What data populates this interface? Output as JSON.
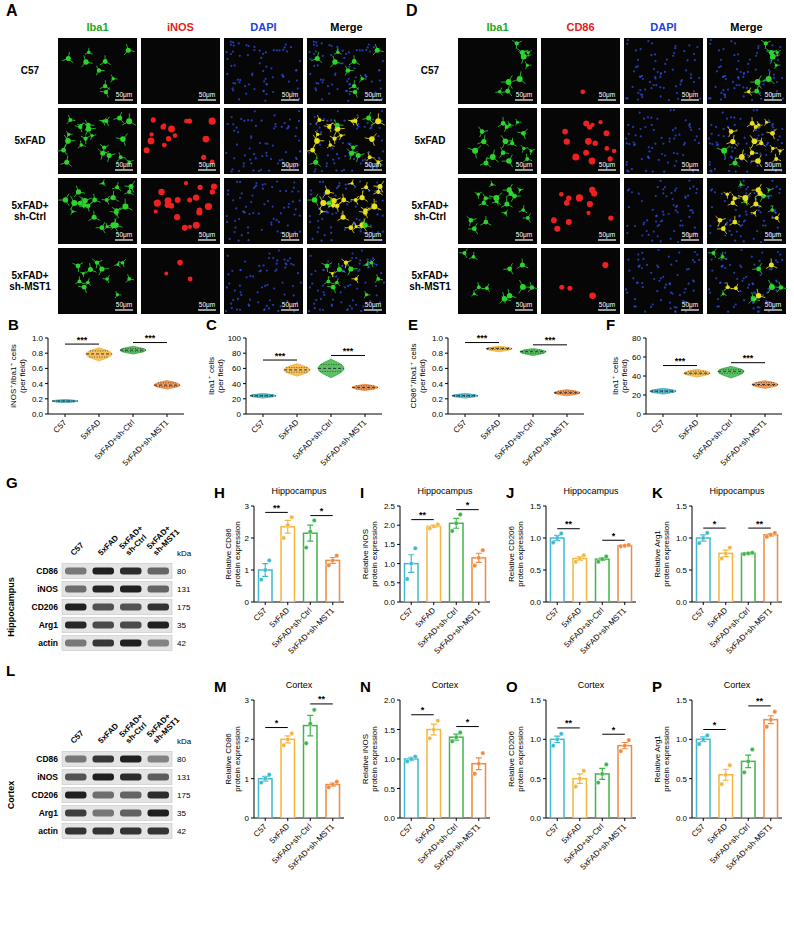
{
  "image_panels": [
    {
      "panel_label": "A",
      "columns": [
        "Iba1",
        "iNOS",
        "DAPI",
        "Merge"
      ],
      "rows": [
        "C57",
        "5xFAD",
        "5xFAD+sh-Ctrl",
        "5xFAD+sh-MST1"
      ],
      "scale_bar": "50μm"
    },
    {
      "panel_label": "D",
      "columns": [
        "Iba1",
        "CD86",
        "DAPI",
        "Merge"
      ],
      "rows": [
        "C57",
        "5xFAD",
        "5xFAD+sh-Ctrl",
        "5xFAD+sh-MST1"
      ],
      "scale_bar": "50μm"
    }
  ],
  "blots": [
    {
      "panel_label": "G",
      "region": "Hippocampus",
      "unit": "kDa",
      "lanes": [
        "C57",
        "5xFAD",
        "5xFAD+sh-Ctrl",
        "5xFAD+sh-MST1"
      ],
      "proteins": [
        {
          "name": "CD86",
          "kda": 80
        },
        {
          "name": "iNOS",
          "kda": 131
        },
        {
          "name": "CD206",
          "kda": 175
        },
        {
          "name": "Arg1",
          "kda": 35
        },
        {
          "name": "actin",
          "kda": 42
        }
      ]
    },
    {
      "panel_label": "L",
      "region": "Cortex",
      "unit": "kDa",
      "lanes": [
        "C57",
        "5xFAD",
        "5xFAD+sh-Ctrl",
        "5xFAD+sh-MST1"
      ],
      "proteins": [
        {
          "name": "CD86",
          "kda": 80
        },
        {
          "name": "iNOS",
          "kda": 131
        },
        {
          "name": "CD206",
          "kda": 175
        },
        {
          "name": "Arg1",
          "kda": 35
        },
        {
          "name": "actin",
          "kda": 42
        }
      ]
    }
  ],
  "chart_data": [
    {
      "panel_label": "B",
      "type": "violin",
      "y_label": "iNOS⁺/Iba1⁺ cells (per field)",
      "categories": [
        "C57",
        "5xFAD",
        "5xFAD+sh-Ctrl",
        "5xFAD+sh-MST1"
      ],
      "colors": [
        "#3dbad0",
        "#f4b63f",
        "#3fb54a",
        "#f08a3e"
      ],
      "ylim": [
        0,
        1
      ],
      "yticks": [
        {
          "value": 0,
          "label": "0.0"
        },
        0.2,
        0.4,
        0.6,
        0.8,
        {
          "value": 1,
          "label": "1.0"
        }
      ],
      "values": [
        0.17,
        0.79,
        0.84,
        0.38
      ],
      "min": [
        0.15,
        0.7,
        0.79,
        0.33
      ],
      "q1": [
        0.16,
        0.75,
        0.82,
        0.36
      ],
      "q3": [
        0.18,
        0.83,
        0.86,
        0.41
      ],
      "max": [
        0.19,
        0.87,
        0.89,
        0.44
      ],
      "significance": [
        {
          "from": "C57",
          "to": "5xFAD",
          "label": "***"
        },
        {
          "from": "5xFAD+sh-Ctrl",
          "to": "5xFAD+sh-MST1",
          "label": "***"
        }
      ]
    },
    {
      "panel_label": "C",
      "type": "violin",
      "y_label": "Iba1⁺ cells (per field)",
      "categories": [
        "C57",
        "5xFAD",
        "5xFAD+sh-Ctrl",
        "5xFAD+sh-MST1"
      ],
      "colors": [
        "#3dbad0",
        "#f4b63f",
        "#3fb54a",
        "#f08a3e"
      ],
      "ylim": [
        0,
        100
      ],
      "yticks": [
        0,
        20,
        40,
        60,
        80,
        100
      ],
      "values": [
        24,
        58,
        60,
        35
      ],
      "min": [
        21,
        50,
        48,
        31
      ],
      "q1": [
        23,
        55,
        56,
        33
      ],
      "q3": [
        25,
        61,
        65,
        37
      ],
      "max": [
        27,
        66,
        72,
        39
      ],
      "significance": [
        {
          "from": "C57",
          "to": "5xFAD",
          "label": "***"
        },
        {
          "from": "5xFAD+sh-Ctrl",
          "to": "5xFAD+sh-MST1",
          "label": "***"
        }
      ]
    },
    {
      "panel_label": "E",
      "type": "violin",
      "y_label": "CD86⁺/Iba1⁺ cells (per field)",
      "categories": [
        "C57",
        "5xFAD",
        "5xFAD+sh-Ctrl",
        "5xFAD+sh-MST1"
      ],
      "colors": [
        "#3dbad0",
        "#f4b63f",
        "#3fb54a",
        "#f08a3e"
      ],
      "ylim": [
        0,
        1
      ],
      "yticks": [
        {
          "value": 0,
          "label": "0.0"
        },
        0.2,
        0.4,
        0.6,
        0.8,
        {
          "value": 1,
          "label": "1.0"
        }
      ],
      "values": [
        0.24,
        0.86,
        0.82,
        0.28
      ],
      "min": [
        0.21,
        0.82,
        0.77,
        0.24
      ],
      "q1": [
        0.23,
        0.85,
        0.8,
        0.27
      ],
      "q3": [
        0.25,
        0.87,
        0.84,
        0.3
      ],
      "max": [
        0.27,
        0.89,
        0.86,
        0.32
      ],
      "significance": [
        {
          "from": "C57",
          "to": "5xFAD",
          "label": "***"
        },
        {
          "from": "5xFAD+sh-Ctrl",
          "to": "5xFAD+sh-MST1",
          "label": "***"
        }
      ]
    },
    {
      "panel_label": "F",
      "type": "violin",
      "y_label": "Iba1⁺ cells (per field)",
      "categories": [
        "C57",
        "5xFAD",
        "5xFAD+sh-Ctrl",
        "5xFAD+sh-MST1"
      ],
      "colors": [
        "#3dbad0",
        "#f4b63f",
        "#3fb54a",
        "#f08a3e"
      ],
      "ylim": [
        0,
        80
      ],
      "yticks": [
        0,
        20,
        40,
        60,
        80
      ],
      "values": [
        24,
        43,
        45,
        31
      ],
      "min": [
        21,
        39,
        38,
        27
      ],
      "q1": [
        23,
        42,
        43,
        30
      ],
      "q3": [
        25,
        45,
        47,
        33
      ],
      "max": [
        27,
        47,
        50,
        35
      ],
      "significance": [
        {
          "from": "C57",
          "to": "5xFAD",
          "label": "***"
        },
        {
          "from": "5xFAD+sh-Ctrl",
          "to": "5xFAD+sh-MST1",
          "label": "***"
        }
      ]
    },
    {
      "panel_label": "H",
      "type": "bar",
      "title": "Hippocampus",
      "y_label": "Relative CD86 protein expression",
      "categories": [
        "C57",
        "5xFAD",
        "5xFAD+sh-Ctrl",
        "5xFAD+sh-MST1"
      ],
      "colors": [
        "#3dbad0",
        "#f4b63f",
        "#3fb54a",
        "#f08a3e"
      ],
      "ylim": [
        0,
        3
      ],
      "yticks": [
        0,
        1,
        2,
        3
      ],
      "values": [
        1.0,
        2.35,
        2.15,
        1.3
      ],
      "errors": [
        0.2,
        0.2,
        0.25,
        0.09
      ],
      "points": [
        [
          0.7,
          1.0,
          1.3
        ],
        [
          2.0,
          2.4,
          2.65
        ],
        [
          1.7,
          2.2,
          2.55
        ],
        [
          1.15,
          1.3,
          1.45
        ]
      ],
      "significance": [
        {
          "from": "C57",
          "to": "5xFAD",
          "label": "**"
        },
        {
          "from": "5xFAD+sh-Ctrl",
          "to": "5xFAD+sh-MST1",
          "label": "*"
        }
      ]
    },
    {
      "panel_label": "I",
      "type": "bar",
      "title": "Hippocampus",
      "y_label": "Relative iNOS protein expression",
      "categories": [
        "C57",
        "5xFAD",
        "5xFAD+sh-Ctrl",
        "5xFAD+sh-MST1"
      ],
      "colors": [
        "#3dbad0",
        "#f4b63f",
        "#3fb54a",
        "#f08a3e"
      ],
      "ylim": [
        0,
        2.5
      ],
      "yticks": [
        {
          "value": 0,
          "label": "0.0"
        },
        0.5,
        {
          "value": 1,
          "label": "1.0"
        },
        1.5,
        {
          "value": 2,
          "label": "2.0"
        },
        2.5
      ],
      "values": [
        1.0,
        1.97,
        2.05,
        1.15
      ],
      "errors": [
        0.23,
        0.03,
        0.13,
        0.12
      ],
      "points": [
        [
          0.6,
          1.0,
          1.4
        ],
        [
          1.92,
          1.97,
          2.02
        ],
        [
          1.85,
          2.05,
          2.28
        ],
        [
          0.95,
          1.15,
          1.35
        ]
      ],
      "significance": [
        {
          "from": "C57",
          "to": "5xFAD",
          "label": "**"
        },
        {
          "from": "5xFAD+sh-Ctrl",
          "to": "5xFAD+sh-MST1",
          "label": "*"
        }
      ]
    },
    {
      "panel_label": "J",
      "type": "bar",
      "title": "Hippocampus",
      "y_label": "Relative CD206 protein expression",
      "categories": [
        "C57",
        "5xFAD",
        "5xFAD+sh-Ctrl",
        "5xFAD+sh-MST1"
      ],
      "colors": [
        "#3dbad0",
        "#f4b63f",
        "#3fb54a",
        "#f08a3e"
      ],
      "ylim": [
        0,
        1.5
      ],
      "yticks": [
        {
          "value": 0,
          "label": "0.0"
        },
        0.5,
        {
          "value": 1,
          "label": "1.0"
        },
        1.5
      ],
      "values": [
        1.0,
        0.68,
        0.67,
        0.88
      ],
      "errors": [
        0.04,
        0.03,
        0.02,
        0.01
      ],
      "points": [
        [
          0.93,
          1.0,
          1.07
        ],
        [
          0.63,
          0.68,
          0.73
        ],
        [
          0.63,
          0.67,
          0.71
        ],
        [
          0.87,
          0.88,
          0.89
        ]
      ],
      "significance": [
        {
          "from": "C57",
          "to": "5xFAD",
          "label": "**"
        },
        {
          "from": "5xFAD+sh-Ctrl",
          "to": "5xFAD+sh-MST1",
          "label": "*"
        }
      ]
    },
    {
      "panel_label": "K",
      "type": "bar",
      "title": "Hippocampus",
      "y_label": "Relative Arg1 protein expression",
      "categories": [
        "C57",
        "5xFAD",
        "5xFAD+sh-Ctrl",
        "5xFAD+sh-MST1"
      ],
      "colors": [
        "#3dbad0",
        "#f4b63f",
        "#3fb54a",
        "#f08a3e"
      ],
      "ylim": [
        0,
        1.5
      ],
      "yticks": [
        {
          "value": 0,
          "label": "0.0"
        },
        0.5,
        {
          "value": 1,
          "label": "1.0"
        },
        1.5
      ],
      "values": [
        1.0,
        0.76,
        0.76,
        1.05
      ],
      "errors": [
        0.05,
        0.05,
        0.01,
        0.02
      ],
      "points": [
        [
          0.92,
          1.0,
          1.08
        ],
        [
          0.68,
          0.76,
          0.85
        ],
        [
          0.75,
          0.76,
          0.77
        ],
        [
          1.02,
          1.05,
          1.08
        ]
      ],
      "significance": [
        {
          "from": "C57",
          "to": "5xFAD",
          "label": "*"
        },
        {
          "from": "5xFAD+sh-Ctrl",
          "to": "5xFAD+sh-MST1",
          "label": "**"
        }
      ]
    },
    {
      "panel_label": "M",
      "type": "bar",
      "title": "Cortex",
      "y_label": "Relative CD86 protein expression",
      "categories": [
        "C57",
        "5xFAD",
        "5xFAD+sh-Ctrl",
        "5xFAD+sh-MST1"
      ],
      "colors": [
        "#3dbad0",
        "#f4b63f",
        "#3fb54a",
        "#f08a3e"
      ],
      "ylim": [
        0,
        3
      ],
      "yticks": [
        0,
        1,
        2,
        3
      ],
      "values": [
        1.0,
        2.0,
        2.35,
        0.85
      ],
      "errors": [
        0.06,
        0.09,
        0.26,
        0.04
      ],
      "points": [
        [
          0.9,
          1.0,
          1.1
        ],
        [
          1.85,
          2.0,
          2.15
        ],
        [
          1.9,
          2.4,
          2.75
        ],
        [
          0.78,
          0.85,
          0.92
        ]
      ],
      "significance": [
        {
          "from": "C57",
          "to": "5xFAD",
          "label": "*"
        },
        {
          "from": "5xFAD+sh-Ctrl",
          "to": "5xFAD+sh-MST1",
          "label": "**"
        }
      ]
    },
    {
      "panel_label": "N",
      "type": "bar",
      "title": "Cortex",
      "y_label": "Relative iNOS protein expression",
      "categories": [
        "C57",
        "5xFAD",
        "5xFAD+sh-Ctrl",
        "5xFAD+sh-MST1"
      ],
      "colors": [
        "#3dbad0",
        "#f4b63f",
        "#3fb54a",
        "#f08a3e"
      ],
      "ylim": [
        0,
        2
      ],
      "yticks": [
        {
          "value": 0,
          "label": "0.0"
        },
        0.5,
        {
          "value": 1,
          "label": "1.0"
        },
        1.5,
        {
          "value": 2,
          "label": "2.0"
        }
      ],
      "values": [
        1.0,
        1.5,
        1.37,
        0.92
      ],
      "errors": [
        0.03,
        0.09,
        0.05,
        0.1
      ],
      "points": [
        [
          0.96,
          1.0,
          1.04
        ],
        [
          1.35,
          1.5,
          1.65
        ],
        [
          1.3,
          1.37,
          1.45
        ],
        [
          0.75,
          0.92,
          1.1
        ]
      ],
      "significance": [
        {
          "from": "C57",
          "to": "5xFAD",
          "label": "*"
        },
        {
          "from": "5xFAD+sh-Ctrl",
          "to": "5xFAD+sh-MST1",
          "label": "*"
        }
      ]
    },
    {
      "panel_label": "O",
      "type": "bar",
      "title": "Cortex",
      "y_label": "Relative CD206 protein expression",
      "categories": [
        "C57",
        "5xFAD",
        "5xFAD+sh-Ctrl",
        "5xFAD+sh-MST1"
      ],
      "colors": [
        "#3dbad0",
        "#f4b63f",
        "#3fb54a",
        "#f08a3e"
      ],
      "ylim": [
        0,
        1.5
      ],
      "yticks": [
        {
          "value": 0,
          "label": "0.0"
        },
        0.5,
        {
          "value": 1,
          "label": "1.0"
        },
        1.5
      ],
      "values": [
        1.0,
        0.5,
        0.56,
        0.92
      ],
      "errors": [
        0.04,
        0.06,
        0.07,
        0.04
      ],
      "points": [
        [
          0.92,
          1.0,
          1.07
        ],
        [
          0.4,
          0.5,
          0.6
        ],
        [
          0.45,
          0.56,
          0.68
        ],
        [
          0.85,
          0.92,
          0.99
        ]
      ],
      "significance": [
        {
          "from": "C57",
          "to": "5xFAD",
          "label": "**"
        },
        {
          "from": "5xFAD+sh-Ctrl",
          "to": "5xFAD+sh-MST1",
          "label": "*"
        }
      ]
    },
    {
      "panel_label": "P",
      "type": "bar",
      "title": "Cortex",
      "y_label": "Relative Arg1 protein expression",
      "categories": [
        "C57",
        "5xFAD",
        "5xFAD+sh-Ctrl",
        "5xFAD+sh-MST1"
      ],
      "colors": [
        "#3dbad0",
        "#f4b63f",
        "#3fb54a",
        "#f08a3e"
      ],
      "ylim": [
        0,
        1.5
      ],
      "yticks": [
        {
          "value": 0,
          "label": "0.0"
        },
        0.5,
        {
          "value": 1,
          "label": "1.0"
        },
        1.5
      ],
      "values": [
        1.0,
        0.55,
        0.72,
        1.25
      ],
      "errors": [
        0.03,
        0.07,
        0.08,
        0.05
      ],
      "points": [
        [
          0.94,
          1.0,
          1.05
        ],
        [
          0.43,
          0.55,
          0.67
        ],
        [
          0.58,
          0.72,
          0.87
        ],
        [
          1.16,
          1.25,
          1.35
        ]
      ],
      "significance": [
        {
          "from": "C57",
          "to": "5xFAD",
          "label": "*"
        },
        {
          "from": "5xFAD+sh-Ctrl",
          "to": "5xFAD+sh-MST1",
          "label": "**"
        }
      ]
    }
  ]
}
